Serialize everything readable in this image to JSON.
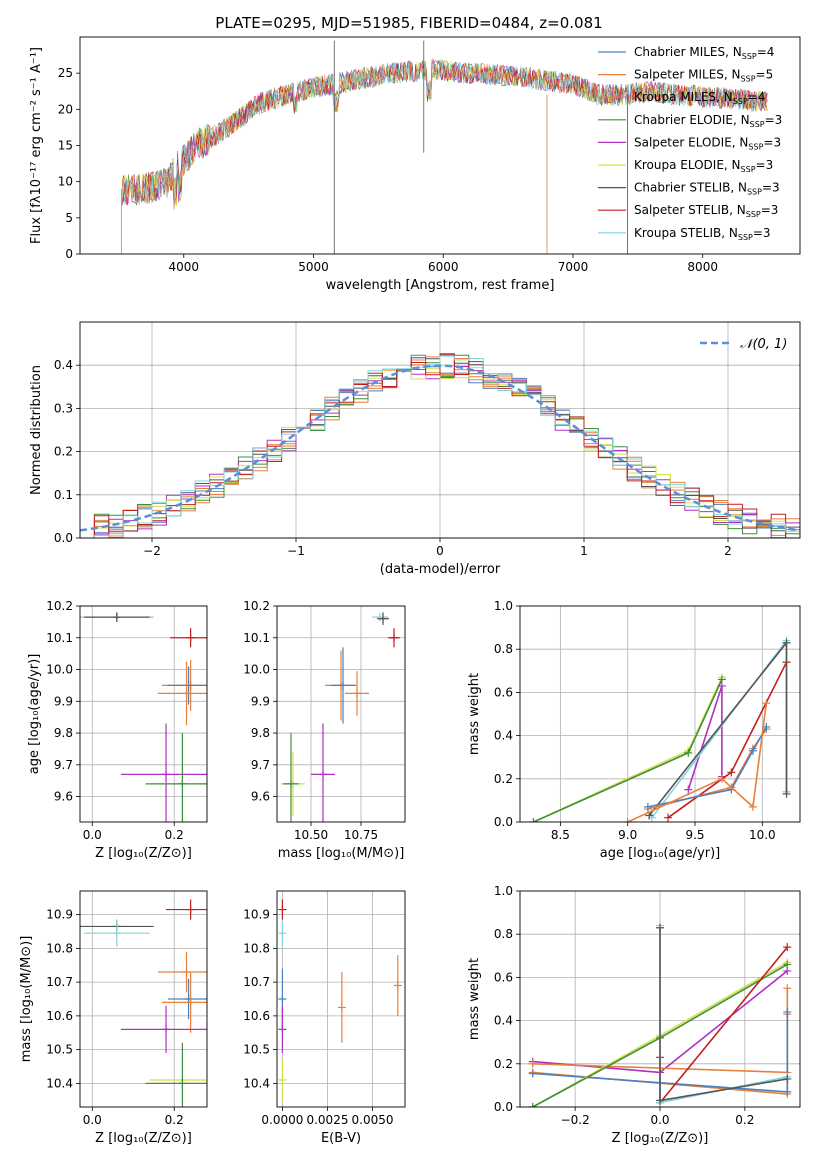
{
  "colors": {
    "Chabrier MILES": "#4a7fc1",
    "Salpeter MILES": "#e8803a",
    "Kroupa MILES": "#e8803a",
    "Chabrier ELODIE": "#3f8f3f",
    "Salpeter ELODIE": "#b030c0",
    "Kroupa ELODIE": "#d4e14a",
    "Chabrier STELIB": "#555555",
    "Salpeter STELIB": "#c41e1e",
    "Kroupa STELIB": "#7fd6e0",
    "normal": "#5b8fd6"
  },
  "chart_data": [
    {
      "id": "spectrum",
      "type": "line",
      "title": "PLATE=0295, MJD=51985, FIBERID=0484, z=0.081",
      "xlabel": "wavelength [Angstrom, rest frame]",
      "ylabel": "Flux [fλ10⁻¹⁷ erg cm⁻² s⁻¹ A⁻¹]",
      "xlim": [
        3200,
        8750
      ],
      "ylim": [
        0,
        30
      ],
      "xticks": [
        4000,
        5000,
        6000,
        7000,
        8000
      ],
      "yticks": [
        0,
        5,
        10,
        15,
        20,
        25
      ],
      "grid": false,
      "legend": "upper-right",
      "continuum": [
        [
          3520,
          9
        ],
        [
          3700,
          9
        ],
        [
          3880,
          10
        ],
        [
          3950,
          12
        ],
        [
          4100,
          15
        ],
        [
          4300,
          17
        ],
        [
          4600,
          21
        ],
        [
          5000,
          23
        ],
        [
          5300,
          24
        ],
        [
          5600,
          25
        ],
        [
          5900,
          25.5
        ],
        [
          6200,
          25
        ],
        [
          6600,
          24.5
        ],
        [
          7000,
          23.5
        ],
        [
          7200,
          22
        ],
        [
          7400,
          22
        ],
        [
          7600,
          22.5
        ],
        [
          7800,
          22
        ],
        [
          8200,
          21.5
        ],
        [
          8500,
          21
        ]
      ],
      "series": [
        {
          "name": "Chabrier MILES, N_SSP=4",
          "legend_main": "Chabrier MILES, N",
          "legend_sub": "SSP",
          "legend_end": "=4"
        },
        {
          "name": "Salpeter MILES, N_SSP=5",
          "legend_main": "Salpeter MILES, N",
          "legend_sub": "SSP",
          "legend_end": "=5"
        },
        {
          "name": "Kroupa MILES, N_SSP=4",
          "legend_main": "Kroupa MILES, N",
          "legend_sub": "SSP",
          "legend_end": "=4"
        },
        {
          "name": "Chabrier ELODIE, N_SSP=3",
          "legend_main": "Chabrier ELODIE, N",
          "legend_sub": "SSP",
          "legend_end": "=3"
        },
        {
          "name": "Salpeter ELODIE, N_SSP=3",
          "legend_main": "Salpeter ELODIE, N",
          "legend_sub": "SSP",
          "legend_end": "=3"
        },
        {
          "name": "Kroupa ELODIE, N_SSP=3",
          "legend_main": "Kroupa ELODIE, N",
          "legend_sub": "SSP",
          "legend_end": "=3"
        },
        {
          "name": "Chabrier STELIB, N_SSP=3",
          "legend_main": "Chabrier STELIB, N",
          "legend_sub": "SSP",
          "legend_end": "=3"
        },
        {
          "name": "Salpeter STELIB, N_SSP=3",
          "legend_main": "Salpeter STELIB, N",
          "legend_sub": "SSP",
          "legend_end": "=3"
        },
        {
          "name": "Kroupa STELIB, N_SSP=3",
          "legend_main": "Kroupa STELIB, N",
          "legend_sub": "SSP",
          "legend_end": "=3"
        }
      ],
      "spikes": [
        [
          5160,
          0,
          29.5
        ],
        [
          5850,
          14,
          29.5
        ],
        [
          6800,
          0,
          22
        ],
        [
          7420,
          0,
          22
        ]
      ]
    },
    {
      "id": "residuals",
      "type": "histogram",
      "xlabel": "(data-model)/error",
      "ylabel": "Normed distribution",
      "xlim": [
        -2.5,
        2.5
      ],
      "ylim": [
        0,
        0.5
      ],
      "xticks": [
        -2,
        -1,
        0,
        1,
        2
      ],
      "yticks": [
        0.0,
        0.1,
        0.2,
        0.3,
        0.4
      ],
      "grid": true,
      "legend": "upper-right",
      "legend_label": "𝒩(0, 1)",
      "bin_width": 0.1
    },
    {
      "id": "age-vs-Z",
      "type": "errorbar",
      "xlabel": "Z [log₁₀(Z/Z⊙)]",
      "ylabel": "age  [log₁₀(age/yr)]",
      "xlim": [
        -0.03,
        0.28
      ],
      "ylim": [
        9.52,
        10.2
      ],
      "xticks": [
        0.0,
        0.2
      ],
      "yticks": [
        9.6,
        9.7,
        9.8,
        9.9,
        10.0,
        10.1,
        10.2
      ],
      "points": [
        {
          "s": "Kroupa STELIB",
          "x": 0.06,
          "y": 10.165,
          "xe": 0.09,
          "ye": 0.015
        },
        {
          "s": "Chabrier STELIB",
          "x": 0.06,
          "y": 10.165,
          "xe": 0.08,
          "ye": 0.015
        },
        {
          "s": "Salpeter STELIB",
          "x": 0.24,
          "y": 10.1,
          "xe": 0.05,
          "ye": 0.03
        },
        {
          "s": "Salpeter MILES",
          "x": 0.24,
          "y": 9.95,
          "xe": 0.07,
          "ye": 0.08
        },
        {
          "s": "Chabrier MILES",
          "x": 0.235,
          "y": 9.95,
          "xe": 0.05,
          "ye": 0.06
        },
        {
          "s": "Kroupa MILES",
          "x": 0.23,
          "y": 9.925,
          "xe": 0.07,
          "ye": 0.1
        },
        {
          "s": "Salpeter ELODIE",
          "x": 0.18,
          "y": 9.67,
          "xe": 0.11,
          "ye": 0.16
        },
        {
          "s": "Kroupa ELODIE",
          "x": 0.22,
          "y": 9.64,
          "xe": 0.08,
          "ye": 0.14
        },
        {
          "s": "Chabrier ELODIE",
          "x": 0.22,
          "y": 9.64,
          "xe": 0.09,
          "ye": 0.16
        }
      ]
    },
    {
      "id": "age-vs-mass",
      "type": "errorbar",
      "xlabel": "mass [log₁₀(M/M⊙)]",
      "ylabel": "",
      "xlim": [
        10.33,
        10.97
      ],
      "ylim": [
        9.52,
        10.2
      ],
      "xticks": [
        10.5,
        10.75
      ],
      "yticks": [
        9.6,
        9.7,
        9.8,
        9.9,
        10.0,
        10.1,
        10.2
      ],
      "points": [
        {
          "s": "Kroupa STELIB",
          "x": 10.845,
          "y": 10.165,
          "xe": 0.04,
          "ye": 0.012
        },
        {
          "s": "Chabrier STELIB",
          "x": 10.86,
          "y": 10.16,
          "xe": 0.03,
          "ye": 0.02
        },
        {
          "s": "Salpeter STELIB",
          "x": 10.915,
          "y": 10.1,
          "xe": 0.03,
          "ye": 0.03
        },
        {
          "s": "Salpeter MILES",
          "x": 10.65,
          "y": 9.95,
          "xe": 0.08,
          "ye": 0.11
        },
        {
          "s": "Chabrier MILES",
          "x": 10.66,
          "y": 9.95,
          "xe": 0.06,
          "ye": 0.12
        },
        {
          "s": "Kroupa MILES",
          "x": 10.73,
          "y": 9.925,
          "xe": 0.06,
          "ye": 0.07
        },
        {
          "s": "Salpeter ELODIE",
          "x": 10.56,
          "y": 9.67,
          "xe": 0.06,
          "ye": 0.16
        },
        {
          "s": "Kroupa ELODIE",
          "x": 10.41,
          "y": 9.64,
          "xe": 0.06,
          "ye": 0.1
        },
        {
          "s": "Chabrier ELODIE",
          "x": 10.4,
          "y": 9.64,
          "xe": 0.04,
          "ye": 0.16
        }
      ]
    },
    {
      "id": "weight-vs-age",
      "type": "line",
      "xlabel": "age  [log₁₀(age/yr)]",
      "ylabel": "mass weight",
      "xlim": [
        8.2,
        10.28
      ],
      "ylim": [
        0,
        1
      ],
      "xticks": [
        8.5,
        9.0,
        9.5,
        10.0
      ],
      "yticks": [
        0.0,
        0.2,
        0.4,
        0.6,
        0.8,
        1.0
      ],
      "grid": true,
      "series": [
        {
          "s": "Kroupa ELODIE",
          "x": [
            8.3,
            9.45,
            9.7
          ],
          "y": [
            0.0,
            0.33,
            0.67
          ]
        },
        {
          "s": "Chabrier ELODIE",
          "x": [
            8.3,
            9.45,
            9.7
          ],
          "y": [
            0.0,
            0.32,
            0.66
          ]
        },
        {
          "s": "Salpeter ELODIE",
          "x": [
            9.45,
            9.7,
            9.7
          ],
          "y": [
            0.15,
            0.63,
            0.21
          ]
        },
        {
          "s": "Salpeter STELIB",
          "x": [
            9.3,
            9.77,
            10.18
          ],
          "y": [
            0.02,
            0.23,
            0.74
          ]
        },
        {
          "s": "Kroupa STELIB",
          "x": [
            9.18,
            10.18,
            10.18
          ],
          "y": [
            0.02,
            0.84,
            0.14
          ]
        },
        {
          "s": "Chabrier STELIB",
          "x": [
            9.16,
            10.18,
            10.18
          ],
          "y": [
            0.03,
            0.83,
            0.13
          ]
        },
        {
          "s": "Salpeter MILES",
          "x": [
            9.15,
            9.77,
            9.93,
            10.03
          ],
          "y": [
            0.06,
            0.16,
            0.34,
            0.43
          ]
        },
        {
          "s": "Chabrier MILES",
          "x": [
            9.15,
            9.77,
            9.93,
            10.03
          ],
          "y": [
            0.07,
            0.15,
            0.33,
            0.44
          ]
        },
        {
          "s": "Kroupa MILES",
          "x": [
            9.0,
            9.7,
            9.93,
            10.03
          ],
          "y": [
            0.0,
            0.2,
            0.07,
            0.55
          ]
        }
      ]
    },
    {
      "id": "mass-vs-Z",
      "type": "errorbar",
      "xlabel": "Z [log₁₀(Z/Z⊙)]",
      "ylabel": "mass [log₁₀(M/M⊙)]",
      "xlim": [
        -0.03,
        0.28
      ],
      "ylim": [
        10.33,
        10.97
      ],
      "xticks": [
        0.0,
        0.2
      ],
      "yticks": [
        10.4,
        10.5,
        10.6,
        10.7,
        10.8,
        10.9
      ],
      "points": [
        {
          "s": "Salpeter STELIB",
          "x": 0.24,
          "y": 10.915,
          "xe": 0.06,
          "ye": 0.03
        },
        {
          "s": "Chabrier STELIB",
          "x": 0.06,
          "y": 10.865,
          "xe": 0.09,
          "ye": 0.02
        },
        {
          "s": "Kroupa STELIB",
          "x": 0.06,
          "y": 10.845,
          "xe": 0.08,
          "ye": 0.04
        },
        {
          "s": "Kroupa MILES",
          "x": 0.23,
          "y": 10.73,
          "xe": 0.07,
          "ye": 0.06
        },
        {
          "s": "Chabrier MILES",
          "x": 0.235,
          "y": 10.65,
          "xe": 0.05,
          "ye": 0.06
        },
        {
          "s": "Salpeter MILES",
          "x": 0.24,
          "y": 10.64,
          "xe": 0.07,
          "ye": 0.09
        },
        {
          "s": "Salpeter ELODIE",
          "x": 0.18,
          "y": 10.56,
          "xe": 0.11,
          "ye": 0.07
        },
        {
          "s": "Kroupa ELODIE",
          "x": 0.22,
          "y": 10.41,
          "xe": 0.08,
          "ye": 0.06
        },
        {
          "s": "Chabrier ELODIE",
          "x": 0.22,
          "y": 10.4,
          "xe": 0.09,
          "ye": 0.12
        }
      ]
    },
    {
      "id": "mass-vs-ebv",
      "type": "errorbar",
      "xlabel": "E(B-V)",
      "ylabel": "",
      "xlim": [
        -0.0003,
        0.0068
      ],
      "ylim": [
        10.33,
        10.97
      ],
      "xticks": [
        0.0,
        0.0025,
        0.005
      ],
      "xticklabels": [
        "0.0000",
        "0.0025",
        "0.0050"
      ],
      "yticks": [
        10.4,
        10.5,
        10.6,
        10.7,
        10.8,
        10.9
      ],
      "points": [
        {
          "s": "Salpeter STELIB",
          "x": 0.0,
          "y": 10.915,
          "xe": 0,
          "ye": 0.03
        },
        {
          "s": "Kroupa STELIB",
          "x": 0.0,
          "y": 10.845,
          "xe": 0,
          "ye": 0.04
        },
        {
          "s": "Chabrier MILES",
          "x": 0.0,
          "y": 10.65,
          "xe": 0,
          "ye": 0.09
        },
        {
          "s": "Salpeter ELODIE",
          "x": 0.0,
          "y": 10.56,
          "xe": 0,
          "ye": 0.07
        },
        {
          "s": "Kroupa ELODIE",
          "x": 0.0,
          "y": 10.41,
          "xe": 0,
          "ye": 0.06
        },
        {
          "s": "Salpeter MILES",
          "x": 0.0033,
          "y": 10.625,
          "xe": 0,
          "ye": 0.105
        },
        {
          "s": "Kroupa MILES",
          "x": 0.0064,
          "y": 10.69,
          "xe": 0,
          "ye": 0.09
        }
      ]
    },
    {
      "id": "weight-vs-Z",
      "type": "line",
      "xlabel": "Z [log₁₀(Z/Z⊙)]",
      "ylabel": "mass weight",
      "xlim": [
        -0.33,
        0.33
      ],
      "ylim": [
        0,
        1
      ],
      "xticks": [
        -0.2,
        0.0,
        0.2
      ],
      "yticks": [
        0.0,
        0.2,
        0.4,
        0.6,
        0.8,
        1.0
      ],
      "grid": true,
      "series": [
        {
          "s": "Salpeter ELODIE",
          "x": [
            -0.3,
            0.0,
            0.3
          ],
          "y": [
            0.21,
            0.16,
            0.63
          ]
        },
        {
          "s": "Kroupa MILES",
          "x": [
            -0.3,
            0.3,
            0.3
          ],
          "y": [
            0.2,
            0.16,
            0.55
          ]
        },
        {
          "s": "Salpeter MILES",
          "x": [
            -0.3,
            0.3,
            0.3
          ],
          "y": [
            0.16,
            0.06,
            0.43
          ]
        },
        {
          "s": "Chabrier MILES",
          "x": [
            -0.3,
            0.3,
            0.3
          ],
          "y": [
            0.155,
            0.07,
            0.44
          ]
        },
        {
          "s": "Kroupa ELODIE",
          "x": [
            -0.3,
            0.0,
            0.3
          ],
          "y": [
            0.0,
            0.33,
            0.67
          ]
        },
        {
          "s": "Chabrier ELODIE",
          "x": [
            -0.3,
            0.0,
            0.3
          ],
          "y": [
            0.0,
            0.32,
            0.66
          ]
        },
        {
          "s": "Salpeter STELIB",
          "x": [
            0.0,
            0.0,
            0.3
          ],
          "y": [
            0.23,
            0.02,
            0.74
          ]
        },
        {
          "s": "Kroupa STELIB",
          "x": [
            0.0,
            0.0,
            0.3
          ],
          "y": [
            0.84,
            0.02,
            0.14
          ]
        },
        {
          "s": "Chabrier STELIB",
          "x": [
            0.0,
            0.0,
            0.3
          ],
          "y": [
            0.83,
            0.03,
            0.13
          ]
        }
      ]
    }
  ]
}
